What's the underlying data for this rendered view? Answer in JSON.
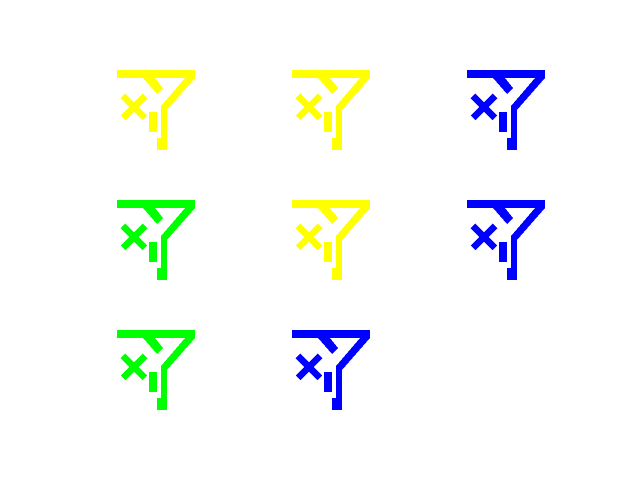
{
  "icons": [
    {
      "name": "funnel-clear-icon",
      "color": "#ffff00"
    },
    {
      "name": "funnel-clear-icon",
      "color": "#ffff00"
    },
    {
      "name": "funnel-clear-icon",
      "color": "#0000ff"
    },
    {
      "name": "funnel-clear-icon",
      "color": "#00ff00"
    },
    {
      "name": "funnel-clear-icon",
      "color": "#ffff00"
    },
    {
      "name": "funnel-clear-icon",
      "color": "#0000ff"
    },
    {
      "name": "funnel-clear-icon",
      "color": "#00ff00"
    },
    {
      "name": "funnel-clear-icon",
      "color": "#0000ff"
    }
  ]
}
